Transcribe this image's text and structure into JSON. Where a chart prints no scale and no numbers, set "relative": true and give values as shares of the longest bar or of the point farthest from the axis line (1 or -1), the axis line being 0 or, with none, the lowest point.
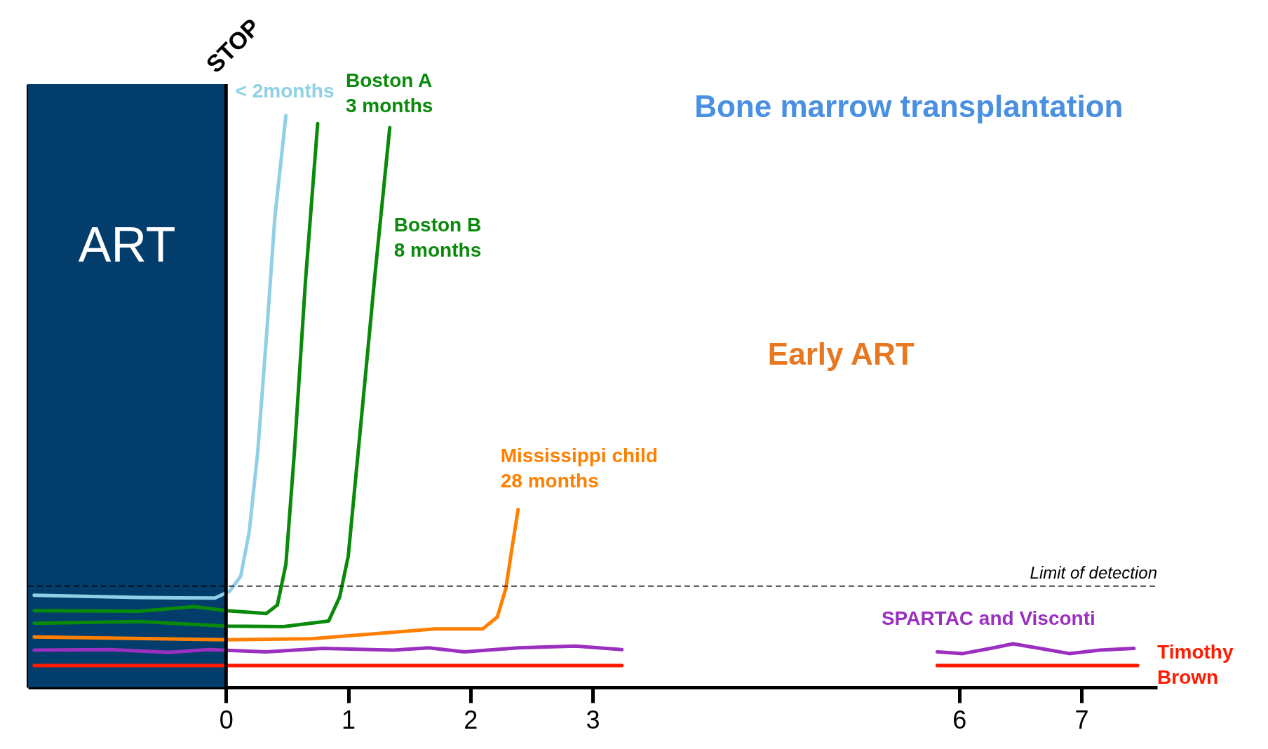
{
  "chart_data": {
    "type": "line",
    "relative": true,
    "xlim": [
      -1.62,
      7.62
    ],
    "xticks": [
      0,
      1,
      2,
      3,
      6,
      7
    ],
    "grid": false,
    "legend": false,
    "line_style": "solid",
    "marker": "none",
    "series": [
      {
        "name": "< 2months",
        "color": "#8fd0e6",
        "x": [
          -1.57,
          -0.71,
          -0.09,
          0.03,
          0.12,
          0.19,
          0.26,
          0.33,
          0.4,
          0.49
        ],
        "values": [
          0.161,
          0.157,
          0.156,
          0.168,
          0.194,
          0.272,
          0.413,
          0.611,
          0.823,
          1.0
        ]
      },
      {
        "name": "Boston A\n3 months",
        "color": "#0a8a0a",
        "x": [
          -1.57,
          -0.71,
          -0.26,
          0.005,
          0.33,
          0.42,
          0.49,
          0.56,
          0.65,
          0.75
        ],
        "values": [
          0.134,
          0.133,
          0.141,
          0.134,
          0.129,
          0.144,
          0.215,
          0.413,
          0.71,
          0.986
        ]
      },
      {
        "name": "Boston B\n8 months",
        "color": "#0a8a0a",
        "x": [
          -1.57,
          -0.71,
          0.005,
          0.47,
          0.84,
          0.93,
          1.0,
          1.12,
          1.22,
          1.34
        ],
        "values": [
          0.112,
          0.115,
          0.107,
          0.106,
          0.116,
          0.158,
          0.229,
          0.498,
          0.724,
          0.979
        ]
      },
      {
        "name": "Mississippi child\n28 months",
        "color": "#ff8000",
        "x": [
          -1.57,
          0.005,
          0.7,
          1.71,
          2.1,
          2.22,
          2.29,
          2.34,
          2.39
        ],
        "values": [
          0.088,
          0.083,
          0.085,
          0.102,
          0.102,
          0.123,
          0.173,
          0.243,
          0.311
        ]
      },
      {
        "name": "SPARTAC and Visconti",
        "color": "#9b30c0",
        "x": [
          -1.57,
          -0.95,
          -0.47,
          -0.14,
          0.33,
          0.79,
          1.37,
          1.66,
          1.95,
          2.39,
          2.86,
          3.24,
          4.5,
          5.82,
          6.03,
          6.28,
          6.44,
          6.66,
          6.9,
          7.15,
          7.43
        ],
        "values": [
          0.065,
          0.066,
          0.061,
          0.066,
          0.062,
          0.068,
          0.065,
          0.069,
          0.062,
          0.069,
          0.072,
          0.066,
          null,
          0.062,
          0.059,
          0.069,
          0.076,
          0.068,
          0.059,
          0.065,
          0.068
        ]
      },
      {
        "name": "Timothy\nBrown",
        "color": "#ff1a00",
        "x": [
          -1.57,
          3.24,
          4.5,
          5.82,
          7.46
        ],
        "values": [
          0.038,
          0.038,
          null,
          0.038,
          0.038
        ]
      }
    ],
    "bands": [
      {
        "axis": "x",
        "from": -1.62,
        "to": 0,
        "label": "ART",
        "color": "#033d6b"
      }
    ],
    "ref_lines": [
      {
        "axis": "x",
        "value": 0,
        "label": "STOP",
        "color": "#000000",
        "line_style": "solid"
      },
      {
        "axis": "y",
        "value": 0.177,
        "label": "Limit of detection",
        "color": "#000000",
        "line_style": "dashed"
      }
    ],
    "annotations": [
      "Bone marrow transplantation",
      "Early ART"
    ]
  }
}
